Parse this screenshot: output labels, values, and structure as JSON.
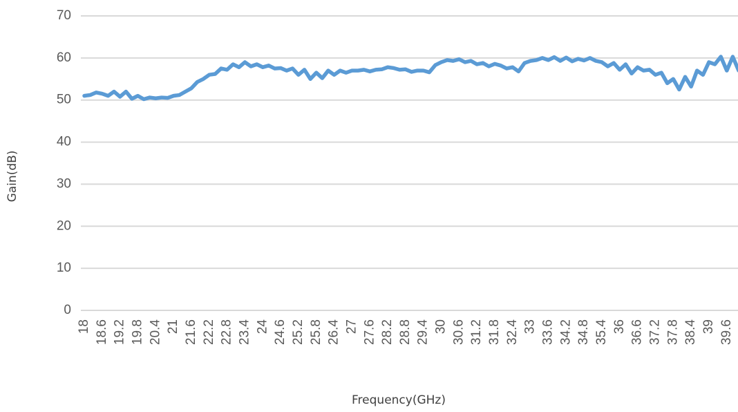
{
  "chart_data": {
    "type": "line",
    "xlabel": "Frequency(GHz)",
    "ylabel": "Gain(dB)",
    "x": [
      18,
      18.2,
      18.4,
      18.6,
      18.8,
      19,
      19.2,
      19.4,
      19.6,
      19.8,
      20,
      20.2,
      20.4,
      20.6,
      20.8,
      21,
      21.2,
      21.4,
      21.6,
      21.8,
      22,
      22.2,
      22.4,
      22.6,
      22.8,
      23,
      23.2,
      23.4,
      23.6,
      23.8,
      24,
      24.2,
      24.4,
      24.6,
      24.8,
      25,
      25.2,
      25.4,
      25.6,
      25.8,
      26,
      26.2,
      26.4,
      26.6,
      26.8,
      27,
      27.2,
      27.4,
      27.6,
      27.8,
      28,
      28.2,
      28.4,
      28.6,
      28.8,
      29,
      29.2,
      29.4,
      29.6,
      29.8,
      30,
      30.2,
      30.4,
      30.6,
      30.8,
      31,
      31.2,
      31.4,
      31.6,
      31.8,
      32,
      32.2,
      32.4,
      32.6,
      32.8,
      33,
      33.2,
      33.4,
      33.6,
      33.8,
      34,
      34.2,
      34.4,
      34.6,
      34.8,
      35,
      35.2,
      35.4,
      35.6,
      35.8,
      36,
      36.2,
      36.4,
      36.6,
      36.8,
      37,
      37.2,
      37.4,
      37.6,
      37.8,
      38,
      38.2,
      38.4,
      38.6,
      38.8,
      39,
      39.2,
      39.4,
      39.6,
      39.8,
      40
    ],
    "series": [
      {
        "name": "Gain",
        "color": "#5b9bd5",
        "values": [
          51,
          51.2,
          51.8,
          51.5,
          51,
          52,
          50.8,
          52,
          50.3,
          51,
          50.2,
          50.6,
          50.4,
          50.6,
          50.5,
          51,
          51.2,
          52,
          52.8,
          54.3,
          55,
          56,
          56.2,
          57.5,
          57.2,
          58.5,
          57.8,
          59,
          58,
          58.5,
          57.8,
          58.2,
          57.5,
          57.6,
          57,
          57.5,
          56,
          57.2,
          55,
          56.5,
          55.2,
          57,
          56,
          57,
          56.5,
          57,
          57,
          57.2,
          56.8,
          57.2,
          57.3,
          57.8,
          57.6,
          57.2,
          57.3,
          56.7,
          57,
          57,
          56.6,
          58.3,
          59,
          59.5,
          59.3,
          59.7,
          59,
          59.3,
          58.5,
          58.8,
          58,
          58.6,
          58.2,
          57.5,
          57.8,
          56.8,
          58.8,
          59.3,
          59.5,
          60,
          59.5,
          60.2,
          59.3,
          60.1,
          59.2,
          59.8,
          59.4,
          60,
          59.3,
          59,
          58,
          58.8,
          57.2,
          58.5,
          56.3,
          57.8,
          57,
          57.2,
          56,
          56.5,
          54,
          55,
          52.5,
          55.5,
          53.2,
          57,
          56,
          59,
          58.5,
          60.3,
          57,
          60.3,
          57
        ]
      }
    ],
    "xlim": [
      18,
      40
    ],
    "xticks": [
      18,
      18.6,
      19.2,
      19.8,
      20.4,
      21,
      21.6,
      22.2,
      22.8,
      23.4,
      24,
      24.6,
      25.2,
      25.8,
      26.4,
      27,
      27.6,
      28.2,
      28.8,
      29.4,
      30,
      30.6,
      31.2,
      31.8,
      32.4,
      33,
      33.6,
      34.2,
      34.8,
      35.4,
      36,
      36.6,
      37.2,
      37.8,
      38.4,
      39,
      39.6
    ],
    "ylim": [
      0,
      70
    ],
    "yticks": [
      0,
      10,
      20,
      30,
      40,
      50,
      60,
      70
    ],
    "grid": true
  }
}
